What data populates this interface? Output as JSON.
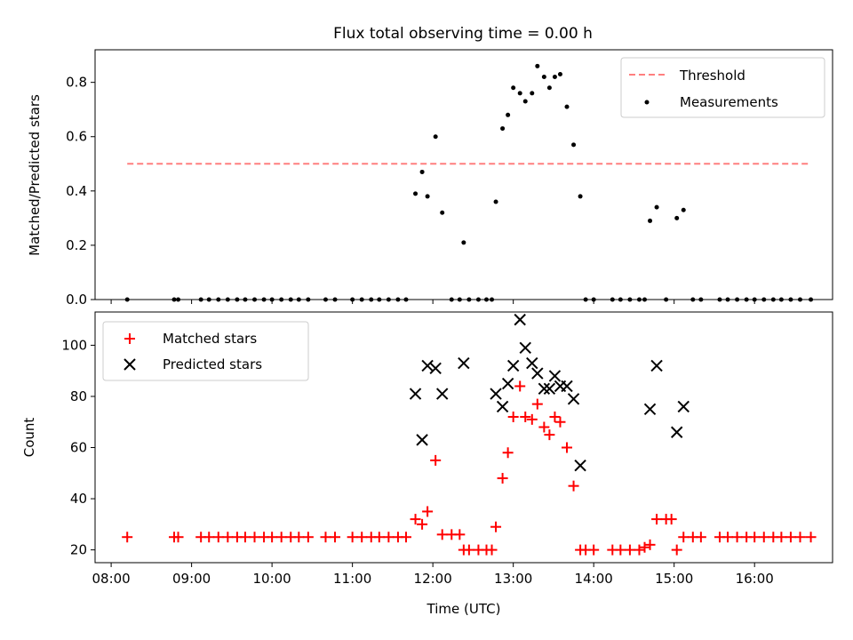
{
  "title": "Flux total observing time = 0.00 h",
  "x_axis": {
    "label": "Time (UTC)",
    "ticks": [
      "08:00",
      "09:00",
      "10:00",
      "11:00",
      "12:00",
      "13:00",
      "14:00",
      "15:00",
      "16:00"
    ]
  },
  "chart_data": [
    {
      "type": "scatter",
      "ylabel": "Matched/Predicted stars",
      "ylim": [
        0,
        0.92
      ],
      "yticks": [
        "0.0",
        "0.2",
        "0.4",
        "0.6",
        "0.8"
      ],
      "legend_position": "top-right",
      "threshold": {
        "name": "Threshold",
        "value": 0.5,
        "x_range": [
          "08:12",
          "16:42"
        ],
        "color": "#ff7f7f"
      },
      "series": [
        {
          "name": "Measurements",
          "color": "#000000",
          "points": [
            [
              "08:12",
              0
            ],
            [
              "08:47",
              0
            ],
            [
              "08:50",
              0
            ],
            [
              "09:07",
              0
            ],
            [
              "09:13",
              0
            ],
            [
              "09:20",
              0
            ],
            [
              "09:27",
              0
            ],
            [
              "09:34",
              0
            ],
            [
              "09:40",
              0
            ],
            [
              "09:47",
              0
            ],
            [
              "09:54",
              0
            ],
            [
              "10:00",
              0
            ],
            [
              "10:07",
              0
            ],
            [
              "10:14",
              0
            ],
            [
              "10:20",
              0
            ],
            [
              "10:27",
              0
            ],
            [
              "10:40",
              0
            ],
            [
              "10:47",
              0
            ],
            [
              "11:00",
              0
            ],
            [
              "11:07",
              0
            ],
            [
              "11:14",
              0
            ],
            [
              "11:20",
              0
            ],
            [
              "11:27",
              0
            ],
            [
              "11:34",
              0
            ],
            [
              "11:40",
              0
            ],
            [
              "11:47",
              0.39
            ],
            [
              "11:52",
              0.47
            ],
            [
              "11:56",
              0.38
            ],
            [
              "12:02",
              0.6
            ],
            [
              "12:07",
              0.32
            ],
            [
              "12:14",
              0
            ],
            [
              "12:20",
              0
            ],
            [
              "12:23",
              0.21
            ],
            [
              "12:27",
              0
            ],
            [
              "12:34",
              0
            ],
            [
              "12:40",
              0
            ],
            [
              "12:44",
              0
            ],
            [
              "12:47",
              0.36
            ],
            [
              "12:52",
              0.63
            ],
            [
              "12:56",
              0.68
            ],
            [
              "13:00",
              0.78
            ],
            [
              "13:05",
              0.76
            ],
            [
              "13:09",
              0.73
            ],
            [
              "13:14",
              0.76
            ],
            [
              "13:18",
              0.86
            ],
            [
              "13:23",
              0.82
            ],
            [
              "13:27",
              0.78
            ],
            [
              "13:31",
              0.82
            ],
            [
              "13:35",
              0.83
            ],
            [
              "13:40",
              0.71
            ],
            [
              "13:45",
              0.57
            ],
            [
              "13:50",
              0.38
            ],
            [
              "13:54",
              0
            ],
            [
              "14:00",
              0
            ],
            [
              "14:14",
              0
            ],
            [
              "14:20",
              0
            ],
            [
              "14:27",
              0
            ],
            [
              "14:34",
              0
            ],
            [
              "14:38",
              0
            ],
            [
              "14:42",
              0.29
            ],
            [
              "14:47",
              0.34
            ],
            [
              "14:54",
              0
            ],
            [
              "15:02",
              0.3
            ],
            [
              "15:07",
              0.33
            ],
            [
              "15:14",
              0
            ],
            [
              "15:20",
              0
            ],
            [
              "15:34",
              0
            ],
            [
              "15:40",
              0
            ],
            [
              "15:47",
              0
            ],
            [
              "15:54",
              0
            ],
            [
              "16:00",
              0
            ],
            [
              "16:07",
              0
            ],
            [
              "16:14",
              0
            ],
            [
              "16:20",
              0
            ],
            [
              "16:27",
              0
            ],
            [
              "16:34",
              0
            ],
            [
              "16:42",
              0
            ]
          ]
        }
      ]
    },
    {
      "type": "scatter",
      "ylabel": "Count",
      "ylim": [
        15,
        113
      ],
      "yticks": [
        "20",
        "40",
        "60",
        "80",
        "100"
      ],
      "legend_position": "top-left",
      "series": [
        {
          "name": "Matched stars",
          "marker": "+",
          "color": "#ff0000",
          "points": [
            [
              "08:12",
              25
            ],
            [
              "08:47",
              25
            ],
            [
              "08:50",
              25
            ],
            [
              "09:07",
              25
            ],
            [
              "09:13",
              25
            ],
            [
              "09:20",
              25
            ],
            [
              "09:27",
              25
            ],
            [
              "09:34",
              25
            ],
            [
              "09:40",
              25
            ],
            [
              "09:47",
              25
            ],
            [
              "09:54",
              25
            ],
            [
              "10:00",
              25
            ],
            [
              "10:07",
              25
            ],
            [
              "10:14",
              25
            ],
            [
              "10:20",
              25
            ],
            [
              "10:27",
              25
            ],
            [
              "10:40",
              25
            ],
            [
              "10:47",
              25
            ],
            [
              "11:00",
              25
            ],
            [
              "11:07",
              25
            ],
            [
              "11:14",
              25
            ],
            [
              "11:20",
              25
            ],
            [
              "11:27",
              25
            ],
            [
              "11:34",
              25
            ],
            [
              "11:40",
              25
            ],
            [
              "11:47",
              32
            ],
            [
              "11:52",
              30
            ],
            [
              "11:56",
              35
            ],
            [
              "12:02",
              55
            ],
            [
              "12:07",
              26
            ],
            [
              "12:14",
              26
            ],
            [
              "12:20",
              26
            ],
            [
              "12:23",
              20
            ],
            [
              "12:27",
              20
            ],
            [
              "12:34",
              20
            ],
            [
              "12:40",
              20
            ],
            [
              "12:44",
              20
            ],
            [
              "12:47",
              29
            ],
            [
              "12:52",
              48
            ],
            [
              "12:56",
              58
            ],
            [
              "13:00",
              72
            ],
            [
              "13:05",
              84
            ],
            [
              "13:09",
              72
            ],
            [
              "13:14",
              71
            ],
            [
              "13:18",
              77
            ],
            [
              "13:23",
              68
            ],
            [
              "13:27",
              65
            ],
            [
              "13:31",
              72
            ],
            [
              "13:35",
              70
            ],
            [
              "13:40",
              60
            ],
            [
              "13:45",
              45
            ],
            [
              "13:50",
              20
            ],
            [
              "13:54",
              20
            ],
            [
              "14:00",
              20
            ],
            [
              "14:14",
              20
            ],
            [
              "14:20",
              20
            ],
            [
              "14:27",
              20
            ],
            [
              "14:34",
              20
            ],
            [
              "14:38",
              21
            ],
            [
              "14:42",
              22
            ],
            [
              "14:47",
              32
            ],
            [
              "14:54",
              32
            ],
            [
              "14:58",
              32
            ],
            [
              "15:02",
              20
            ],
            [
              "15:07",
              25
            ],
            [
              "15:14",
              25
            ],
            [
              "15:20",
              25
            ],
            [
              "15:34",
              25
            ],
            [
              "15:40",
              25
            ],
            [
              "15:47",
              25
            ],
            [
              "15:54",
              25
            ],
            [
              "16:00",
              25
            ],
            [
              "16:07",
              25
            ],
            [
              "16:14",
              25
            ],
            [
              "16:20",
              25
            ],
            [
              "16:27",
              25
            ],
            [
              "16:34",
              25
            ],
            [
              "16:42",
              25
            ]
          ]
        },
        {
          "name": "Predicted stars",
          "marker": "x",
          "color": "#000000",
          "points": [
            [
              "11:47",
              81
            ],
            [
              "11:52",
              63
            ],
            [
              "11:56",
              92
            ],
            [
              "12:02",
              91
            ],
            [
              "12:07",
              81
            ],
            [
              "12:23",
              93
            ],
            [
              "12:47",
              81
            ],
            [
              "12:52",
              76
            ],
            [
              "12:56",
              85
            ],
            [
              "13:00",
              92
            ],
            [
              "13:05",
              110
            ],
            [
              "13:09",
              99
            ],
            [
              "13:14",
              93
            ],
            [
              "13:18",
              89
            ],
            [
              "13:23",
              83
            ],
            [
              "13:27",
              83
            ],
            [
              "13:31",
              88
            ],
            [
              "13:35",
              84
            ],
            [
              "13:40",
              84
            ],
            [
              "13:45",
              79
            ],
            [
              "13:50",
              53
            ],
            [
              "14:42",
              75
            ],
            [
              "14:47",
              92
            ],
            [
              "15:02",
              66
            ],
            [
              "15:07",
              76
            ]
          ]
        }
      ]
    }
  ]
}
